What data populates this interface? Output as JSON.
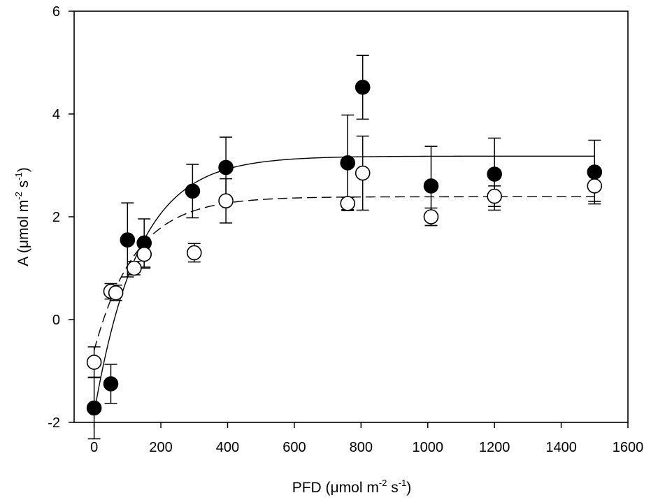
{
  "chart_data": {
    "type": "scatter",
    "title": "",
    "xlabel": {
      "prefix": "PFD (",
      "unit": "μmol m",
      "exp1": "-2",
      "mid": " s",
      "exp2": "-1",
      "suffix": ")"
    },
    "ylabel": {
      "prefix": "A (",
      "unit": "μmol m",
      "exp1": "-2",
      "mid": " s",
      "exp2": "-1",
      "suffix": ")"
    },
    "xlim": [
      -60,
      1600
    ],
    "ylim": [
      -2,
      6
    ],
    "xticks": [
      0,
      200,
      400,
      600,
      800,
      1000,
      1200,
      1400,
      1600
    ],
    "yticks": [
      -2,
      0,
      2,
      4,
      6
    ],
    "grid": false,
    "series": [
      {
        "name": "filled",
        "marker": "filled-circle",
        "color": "#000000",
        "points": [
          {
            "x": 0,
            "y": -1.72,
            "err": 0.6
          },
          {
            "x": 50,
            "y": -1.25,
            "err": 0.38
          },
          {
            "x": 100,
            "y": 1.55,
            "err": 0.72
          },
          {
            "x": 150,
            "y": 1.49,
            "err": 0.47
          },
          {
            "x": 295,
            "y": 2.5,
            "err": 0.52
          },
          {
            "x": 395,
            "y": 2.96,
            "err": 0.59
          },
          {
            "x": 760,
            "y": 3.05,
            "err": 0.93
          },
          {
            "x": 805,
            "y": 4.52,
            "err": 0.62
          },
          {
            "x": 1010,
            "y": 2.6,
            "err": 0.77
          },
          {
            "x": 1200,
            "y": 2.83,
            "err": 0.7
          },
          {
            "x": 1500,
            "y": 2.87,
            "err": 0.62
          }
        ],
        "fit": {
          "style": "solid",
          "max": 3.18,
          "k": 0.0075,
          "intercept": -1.82
        }
      },
      {
        "name": "open",
        "marker": "open-circle",
        "color": "#000000",
        "points": [
          {
            "x": 0,
            "y": -0.83,
            "err": 0.3
          },
          {
            "x": 50,
            "y": 0.55,
            "err": 0.15
          },
          {
            "x": 65,
            "y": 0.52,
            "err": 0.15
          },
          {
            "x": 120,
            "y": 1.0,
            "err": 0.13
          },
          {
            "x": 150,
            "y": 1.27,
            "err": 0.27
          },
          {
            "x": 300,
            "y": 1.3,
            "err": 0.18
          },
          {
            "x": 395,
            "y": 2.31,
            "err": 0.43
          },
          {
            "x": 760,
            "y": 2.26,
            "err": 0.12
          },
          {
            "x": 805,
            "y": 2.85,
            "err": 0.72
          },
          {
            "x": 1010,
            "y": 2.0,
            "err": 0.17
          },
          {
            "x": 1200,
            "y": 2.4,
            "err": 0.2
          },
          {
            "x": 1500,
            "y": 2.6,
            "err": 0.3
          }
        ],
        "fit": {
          "style": "dashed",
          "max": 2.39,
          "k": 0.008,
          "intercept": -0.6
        }
      }
    ]
  }
}
